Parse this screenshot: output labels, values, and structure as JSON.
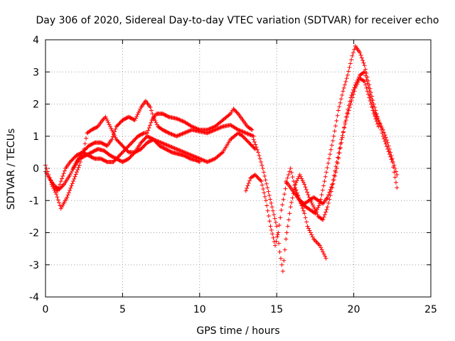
{
  "chart_data": {
    "type": "scatter",
    "title": "Day 306 of 2020, Sidereal Day-to-day VTEC variation (SDTVAR) for receiver echo",
    "xlabel": "GPS time / hours",
    "ylabel": "SDTVAR / TECUs",
    "xlim": [
      0,
      25
    ],
    "ylim": [
      -4,
      4
    ],
    "xticks": [
      "0",
      "5",
      "10",
      "15",
      "20",
      "25"
    ],
    "yticks": [
      "-4",
      "-3",
      "-2",
      "-1",
      "0",
      "1",
      "2",
      "3",
      "4"
    ],
    "grid": true,
    "legend": "none",
    "marker": "+",
    "color": "#ff0000",
    "series": [
      {
        "x": [
          0,
          0.2,
          0.4,
          0.6,
          0.8,
          1.0,
          1.3,
          1.6,
          2.0,
          2.4,
          2.8,
          3.2,
          3.6,
          4.0,
          4.4,
          4.8,
          5.2,
          5.6,
          6.0,
          6.4,
          6.6,
          6.9,
          7.2,
          7.6,
          8.0,
          8.5,
          9.0,
          9.5,
          10.0,
          10.5,
          11.0,
          11.5,
          12.0,
          12.2,
          12.5,
          12.8,
          13.1,
          13.4
        ],
        "y": [
          0.1,
          -0.2,
          -0.45,
          -0.6,
          -0.7,
          -0.4,
          0.0,
          0.2,
          0.4,
          0.5,
          0.4,
          0.3,
          0.3,
          0.2,
          0.2,
          0.4,
          0.6,
          0.8,
          1.0,
          1.1,
          1.1,
          1.5,
          1.7,
          1.7,
          1.6,
          1.55,
          1.45,
          1.3,
          1.2,
          1.2,
          1.3,
          1.5,
          1.7,
          1.85,
          1.7,
          1.5,
          1.3,
          1.2
        ]
      },
      {
        "x": [
          0,
          0.3,
          0.6,
          0.9,
          1.2,
          1.6,
          2.0,
          2.4,
          2.8,
          3.2,
          3.6,
          4.0,
          4.3,
          4.6,
          5.0,
          5.4,
          5.8,
          6.2,
          6.5,
          6.8,
          7.0,
          7.3,
          7.6,
          8.0,
          8.5,
          9.0,
          9.5,
          10.0,
          10.5,
          11.0,
          11.5,
          12.0,
          12.5,
          13.0,
          13.5
        ],
        "y": [
          -0.1,
          -0.35,
          -0.55,
          -0.65,
          -0.5,
          -0.2,
          0.2,
          0.5,
          0.7,
          0.8,
          0.8,
          0.7,
          0.9,
          1.3,
          1.5,
          1.6,
          1.5,
          1.9,
          2.1,
          1.9,
          1.6,
          1.3,
          1.2,
          1.1,
          1.0,
          1.1,
          1.2,
          1.15,
          1.1,
          1.2,
          1.3,
          1.35,
          1.2,
          1.1,
          1.0
        ]
      },
      {
        "x": [
          0.4,
          0.7,
          1.0,
          1.4,
          1.8,
          2.2,
          2.5,
          2.7,
          3.0,
          3.4,
          3.7,
          3.9,
          4.2,
          4.6,
          5.0,
          5.4,
          5.8,
          6.2,
          6.6,
          7.0,
          7.5,
          8.0,
          8.5,
          9.0,
          9.5,
          10.0,
          10.5,
          11.0,
          11.5,
          12.0,
          12.5,
          12.8,
          13.2,
          13.6
        ],
        "y": [
          -0.5,
          -0.8,
          -1.25,
          -0.9,
          -0.4,
          0.1,
          0.6,
          1.1,
          1.2,
          1.3,
          1.5,
          1.6,
          1.3,
          0.9,
          0.7,
          0.5,
          0.5,
          0.6,
          0.8,
          0.9,
          0.8,
          0.7,
          0.6,
          0.5,
          0.4,
          0.3,
          0.2,
          0.3,
          0.5,
          0.9,
          1.1,
          1.0,
          0.8,
          0.6
        ]
      },
      {
        "x": [
          1.8,
          2.2,
          2.6,
          3.0,
          3.4,
          3.8,
          4.2,
          4.6,
          5.0,
          5.4,
          5.8,
          6.2,
          6.6,
          7.0,
          7.4,
          7.8,
          8.2,
          8.6,
          9.0,
          9.4,
          9.8,
          10.0
        ],
        "y": [
          0.0,
          0.3,
          0.4,
          0.5,
          0.6,
          0.55,
          0.4,
          0.3,
          0.2,
          0.3,
          0.5,
          0.8,
          1.0,
          0.9,
          0.7,
          0.6,
          0.5,
          0.45,
          0.4,
          0.3,
          0.25,
          0.2
        ]
      },
      {
        "x": [
          13.0,
          13.3,
          13.6,
          14.0,
          14.3,
          14.6,
          14.9,
          15.1,
          15.3,
          15.5,
          15.7,
          15.9,
          16.1,
          16.3,
          16.6,
          16.9,
          17.2,
          17.5,
          17.8,
          18.1,
          18.4,
          18.7,
          19.0,
          19.3,
          19.6,
          19.9,
          20.1,
          20.4,
          20.7,
          21.0,
          21.3,
          21.6,
          21.9,
          22.2,
          22.5,
          22.8
        ],
        "y": [
          -0.7,
          -0.3,
          -0.2,
          -0.4,
          -1.0,
          -1.8,
          -2.4,
          -2.0,
          -1.3,
          -0.8,
          -0.3,
          0.0,
          -0.4,
          -0.8,
          -1.1,
          -1.2,
          -1.3,
          -1.4,
          -1.1,
          -0.4,
          0.3,
          1.0,
          1.8,
          2.4,
          2.9,
          3.5,
          3.8,
          3.6,
          3.2,
          2.6,
          2.0,
          1.5,
          1.0,
          0.6,
          0.2,
          -0.6
        ]
      },
      {
        "x": [
          13.5,
          13.8,
          14.1,
          14.4,
          14.7,
          15.0,
          15.2,
          15.4,
          15.6,
          15.9,
          16.2,
          16.5,
          16.8,
          17.1,
          17.4,
          17.7,
          18.0,
          18.3,
          18.6,
          18.9,
          19.2,
          19.5,
          19.8,
          20.1,
          20.4,
          20.7,
          21.0,
          21.3,
          21.6,
          21.9,
          22.2,
          22.5,
          22.8
        ],
        "y": [
          0.9,
          0.5,
          0.0,
          -0.6,
          -1.2,
          -1.8,
          -2.6,
          -3.2,
          -2.2,
          -1.2,
          -0.5,
          -0.2,
          -0.5,
          -0.9,
          -1.2,
          -1.5,
          -1.6,
          -1.2,
          -0.6,
          0.0,
          0.8,
          1.6,
          2.2,
          2.6,
          2.9,
          3.0,
          2.4,
          1.8,
          1.5,
          1.2,
          0.8,
          0.3,
          -0.2
        ]
      },
      {
        "x": [
          15.6,
          15.9,
          16.2,
          16.5,
          16.8,
          17.1,
          17.4,
          17.7,
          18.0,
          18.3,
          18.6,
          18.9,
          19.2,
          19.5,
          19.8,
          20.1,
          20.4,
          20.7,
          21.0,
          21.3,
          21.6
        ],
        "y": [
          -0.4,
          -0.6,
          -0.8,
          -1.0,
          -1.1,
          -1.0,
          -0.9,
          -1.0,
          -1.1,
          -0.9,
          -0.5,
          0.2,
          0.9,
          1.5,
          2.0,
          2.5,
          2.8,
          2.7,
          2.2,
          1.7,
          1.3
        ]
      },
      {
        "x": [
          16.2,
          16.5,
          16.8,
          17.0,
          17.2,
          17.4,
          17.6,
          17.8,
          18.0,
          18.2
        ],
        "y": [
          -0.6,
          -1.0,
          -1.4,
          -1.8,
          -2.0,
          -2.2,
          -2.3,
          -2.4,
          -2.6,
          -2.8
        ]
      }
    ]
  }
}
